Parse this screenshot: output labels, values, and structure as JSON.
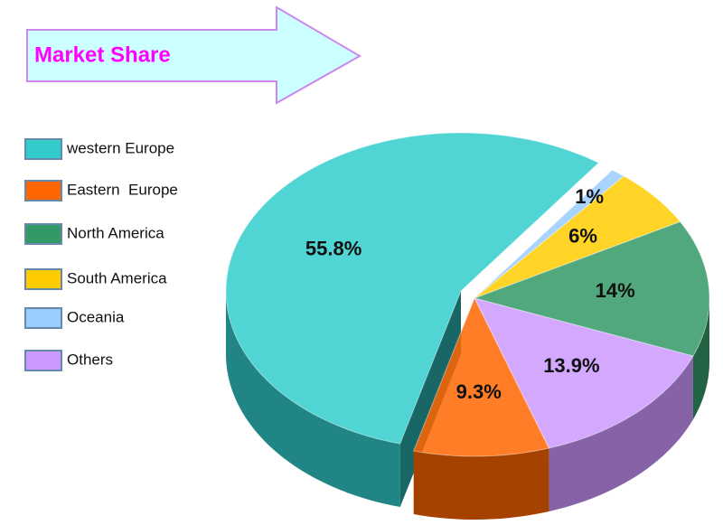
{
  "chart_data": {
    "type": "pie",
    "title": "Market Share",
    "categories": [
      "western Europe",
      "Eastern  Europe",
      "North America",
      "South America",
      "Oceania",
      "Others"
    ],
    "values": [
      55.8,
      9.3,
      14,
      6,
      1,
      13.9
    ],
    "value_labels": [
      "55.8%",
      "9.3%",
      "14%",
      "6%",
      "1%",
      "13.9%"
    ],
    "colors": [
      "#33cccc",
      "#ff6600",
      "#339966",
      "#ffcc00",
      "#99ccff",
      "#cc99ff"
    ]
  }
}
